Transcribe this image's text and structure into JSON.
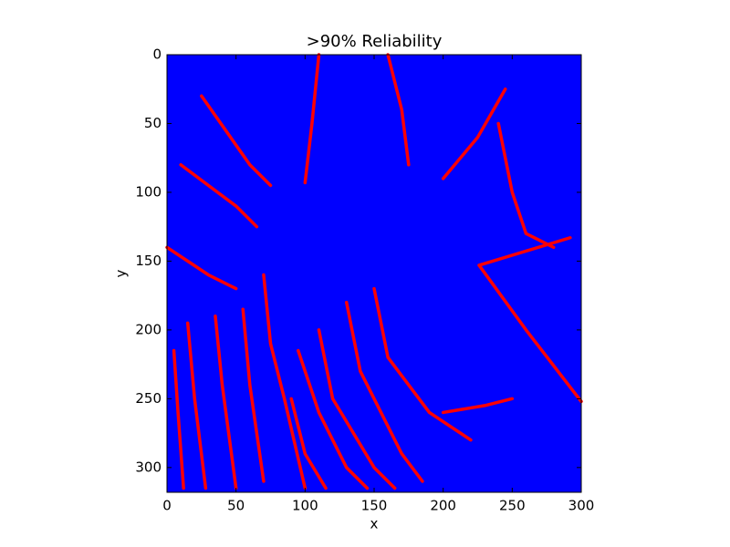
{
  "chart_data": {
    "type": "image",
    "title": ">90% Reliability",
    "xlabel": "x",
    "ylabel": "y",
    "xlim": [
      0,
      300
    ],
    "ylim": [
      318,
      0
    ],
    "xticks": [
      0,
      50,
      100,
      150,
      200,
      250,
      300
    ],
    "yticks": [
      0,
      50,
      100,
      150,
      200,
      250,
      300
    ],
    "background_color": "#0000ff",
    "series": [
      {
        "color": "#ff0000",
        "x": [
          5,
          8,
          12,
          null,
          15,
          20,
          28,
          null,
          35,
          40,
          50,
          null,
          55,
          60,
          70,
          null,
          70,
          75,
          85,
          100,
          null,
          90,
          100,
          115,
          null,
          95,
          110,
          130,
          145,
          null,
          110,
          120,
          150,
          165,
          null,
          130,
          140,
          170,
          185,
          null,
          150,
          160,
          190,
          220,
          null,
          200,
          230,
          250,
          null,
          226,
          260,
          300,
          null,
          226,
          292,
          null,
          10,
          50,
          65,
          null,
          25,
          60,
          75,
          null,
          0,
          30,
          50,
          null,
          110,
          105,
          100,
          null,
          160,
          170,
          175,
          null,
          245,
          225,
          200,
          null,
          240,
          250,
          260,
          280
        ],
        "y": [
          215,
          260,
          315,
          null,
          195,
          250,
          315,
          null,
          190,
          240,
          315,
          null,
          185,
          240,
          310,
          null,
          160,
          210,
          250,
          315,
          null,
          250,
          290,
          315,
          null,
          215,
          260,
          300,
          315,
          null,
          200,
          250,
          300,
          315,
          null,
          180,
          230,
          290,
          310,
          null,
          170,
          220,
          260,
          280,
          null,
          260,
          255,
          250,
          null,
          153,
          200,
          252,
          null,
          153,
          133,
          null,
          80,
          110,
          125,
          null,
          30,
          80,
          95,
          null,
          140,
          160,
          170,
          null,
          0,
          50,
          93,
          null,
          0,
          40,
          80,
          null,
          25,
          60,
          90,
          null,
          50,
          100,
          130,
          140
        ]
      }
    ]
  }
}
